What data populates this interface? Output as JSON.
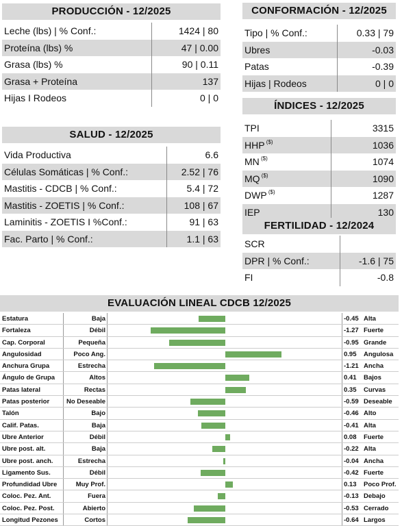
{
  "produccion": {
    "title": "PRODUCCIÓN - 12/2025",
    "rows": [
      {
        "label": "Leche (lbs) | % Conf.:",
        "value": "1424 | 80"
      },
      {
        "label": "Proteína (lbs) %",
        "value": "47 | 0.00"
      },
      {
        "label": "Grasa (lbs) %",
        "value": "90 | 0.11"
      },
      {
        "label": "Grasa + Proteína",
        "value": "137"
      },
      {
        "label": "Hijas I Rodeos",
        "value": "0 | 0"
      }
    ]
  },
  "salud": {
    "title": "SALUD - 12/2025",
    "rows": [
      {
        "label": "Vida Productiva",
        "value": "6.6"
      },
      {
        "label": "Células Somáticas | % Conf.:",
        "value": "2.52 | 76"
      },
      {
        "label": "Mastitis - CDCB | % Conf.:",
        "value": "5.4 | 72"
      },
      {
        "label": "Mastitis - ZOETIS | % Conf.:",
        "value": "108 | 67"
      },
      {
        "label": "Laminitis - ZOETIS I %Conf.:",
        "value": "91 | 63"
      },
      {
        "label": "Fac. Parto | % Conf.:",
        "value": "1.1 | 63"
      }
    ]
  },
  "conformacion": {
    "title": "CONFORMACIÓN - 12/2025",
    "rows": [
      {
        "label": "Tipo | % Conf.:",
        "value": "0.33 | 79"
      },
      {
        "label": "Ubres",
        "value": "-0.03"
      },
      {
        "label": "Patas",
        "value": "-0.39"
      },
      {
        "label": "Hijas | Rodeos",
        "value": "0 | 0"
      }
    ]
  },
  "indices": {
    "title": "ÍNDICES - 12/2025",
    "sup": "($)",
    "rows": [
      {
        "label": "TPI",
        "value": "3315",
        "sup": false
      },
      {
        "label": "HHP",
        "value": "1036",
        "sup": true
      },
      {
        "label": "MN",
        "value": "1074",
        "sup": true
      },
      {
        "label": "MQ",
        "value": "1090",
        "sup": true
      },
      {
        "label": "DWP",
        "value": "1287",
        "sup": true
      },
      {
        "label": "IEP",
        "value": "130",
        "sup": false
      }
    ]
  },
  "fertilidad": {
    "title": "FERTILIDAD - 12/2024",
    "rows": [
      {
        "label": "SCR",
        "value": ""
      },
      {
        "label": "DPR | % Conf.:",
        "value": "-1.6 | 75"
      },
      {
        "label": "FI",
        "value": "-0.8"
      }
    ]
  },
  "lineal": {
    "title": "EVALUACIÓN LINEAL CDCB 12/2025",
    "bar_color": "#6fab5f",
    "rows": [
      {
        "name": "Estatura",
        "low": "Baja",
        "value": -0.45,
        "value_text": "-0.45",
        "high": "Alta"
      },
      {
        "name": "Fortaleza",
        "low": "Débil",
        "value": -1.27,
        "value_text": "-1.27",
        "high": "Fuerte"
      },
      {
        "name": "Cap. Corporal",
        "low": "Pequeña",
        "value": -0.95,
        "value_text": "-0.95",
        "high": "Grande"
      },
      {
        "name": "Angulosidad",
        "low": "Poco Ang.",
        "value": 0.95,
        "value_text": "0.95",
        "high": "Angulosa"
      },
      {
        "name": "Anchura Grupa",
        "low": "Estrecha",
        "value": -1.21,
        "value_text": "-1.21",
        "high": "Ancha"
      },
      {
        "name": "Ángulo de Grupa",
        "low": "Altos",
        "value": 0.41,
        "value_text": "0.41",
        "high": "Bajos"
      },
      {
        "name": "Patas lateral",
        "low": "Rectas",
        "value": 0.35,
        "value_text": "0.35",
        "high": "Curvas"
      },
      {
        "name": "Patas posterior",
        "low": "No Deseable",
        "value": -0.59,
        "value_text": "-0.59",
        "high": "Deseable"
      },
      {
        "name": "Talón",
        "low": "Bajo",
        "value": -0.46,
        "value_text": "-0.46",
        "high": "Alto"
      },
      {
        "name": "Calif. Patas.",
        "low": "Baja",
        "value": -0.41,
        "value_text": "-0.41",
        "high": "Alta"
      },
      {
        "name": "Ubre Anterior",
        "low": "Débil",
        "value": 0.08,
        "value_text": "0.08",
        "high": "Fuerte"
      },
      {
        "name": "Ubre post. alt.",
        "low": "Baja",
        "value": -0.22,
        "value_text": "-0.22",
        "high": "Alta"
      },
      {
        "name": "Ubre post. anch.",
        "low": "Estrecha",
        "value": -0.04,
        "value_text": "-0.04",
        "high": "Ancha"
      },
      {
        "name": "Ligamento Sus.",
        "low": "Débil",
        "value": -0.42,
        "value_text": "-0.42",
        "high": "Fuerte"
      },
      {
        "name": "Profundidad Ubre",
        "low": "Muy Prof.",
        "value": 0.13,
        "value_text": "0.13",
        "high": "Poco Prof."
      },
      {
        "name": "Coloc. Pez. Ant.",
        "low": "Fuera",
        "value": -0.13,
        "value_text": "-0.13",
        "high": "Debajo"
      },
      {
        "name": "Coloc. Pez. Post.",
        "low": "Abierto",
        "value": -0.53,
        "value_text": "-0.53",
        "high": "Cerrado"
      },
      {
        "name": "Longitud Pezones",
        "low": "Cortos",
        "value": -0.64,
        "value_text": "-0.64",
        "high": "Largos"
      }
    ]
  }
}
